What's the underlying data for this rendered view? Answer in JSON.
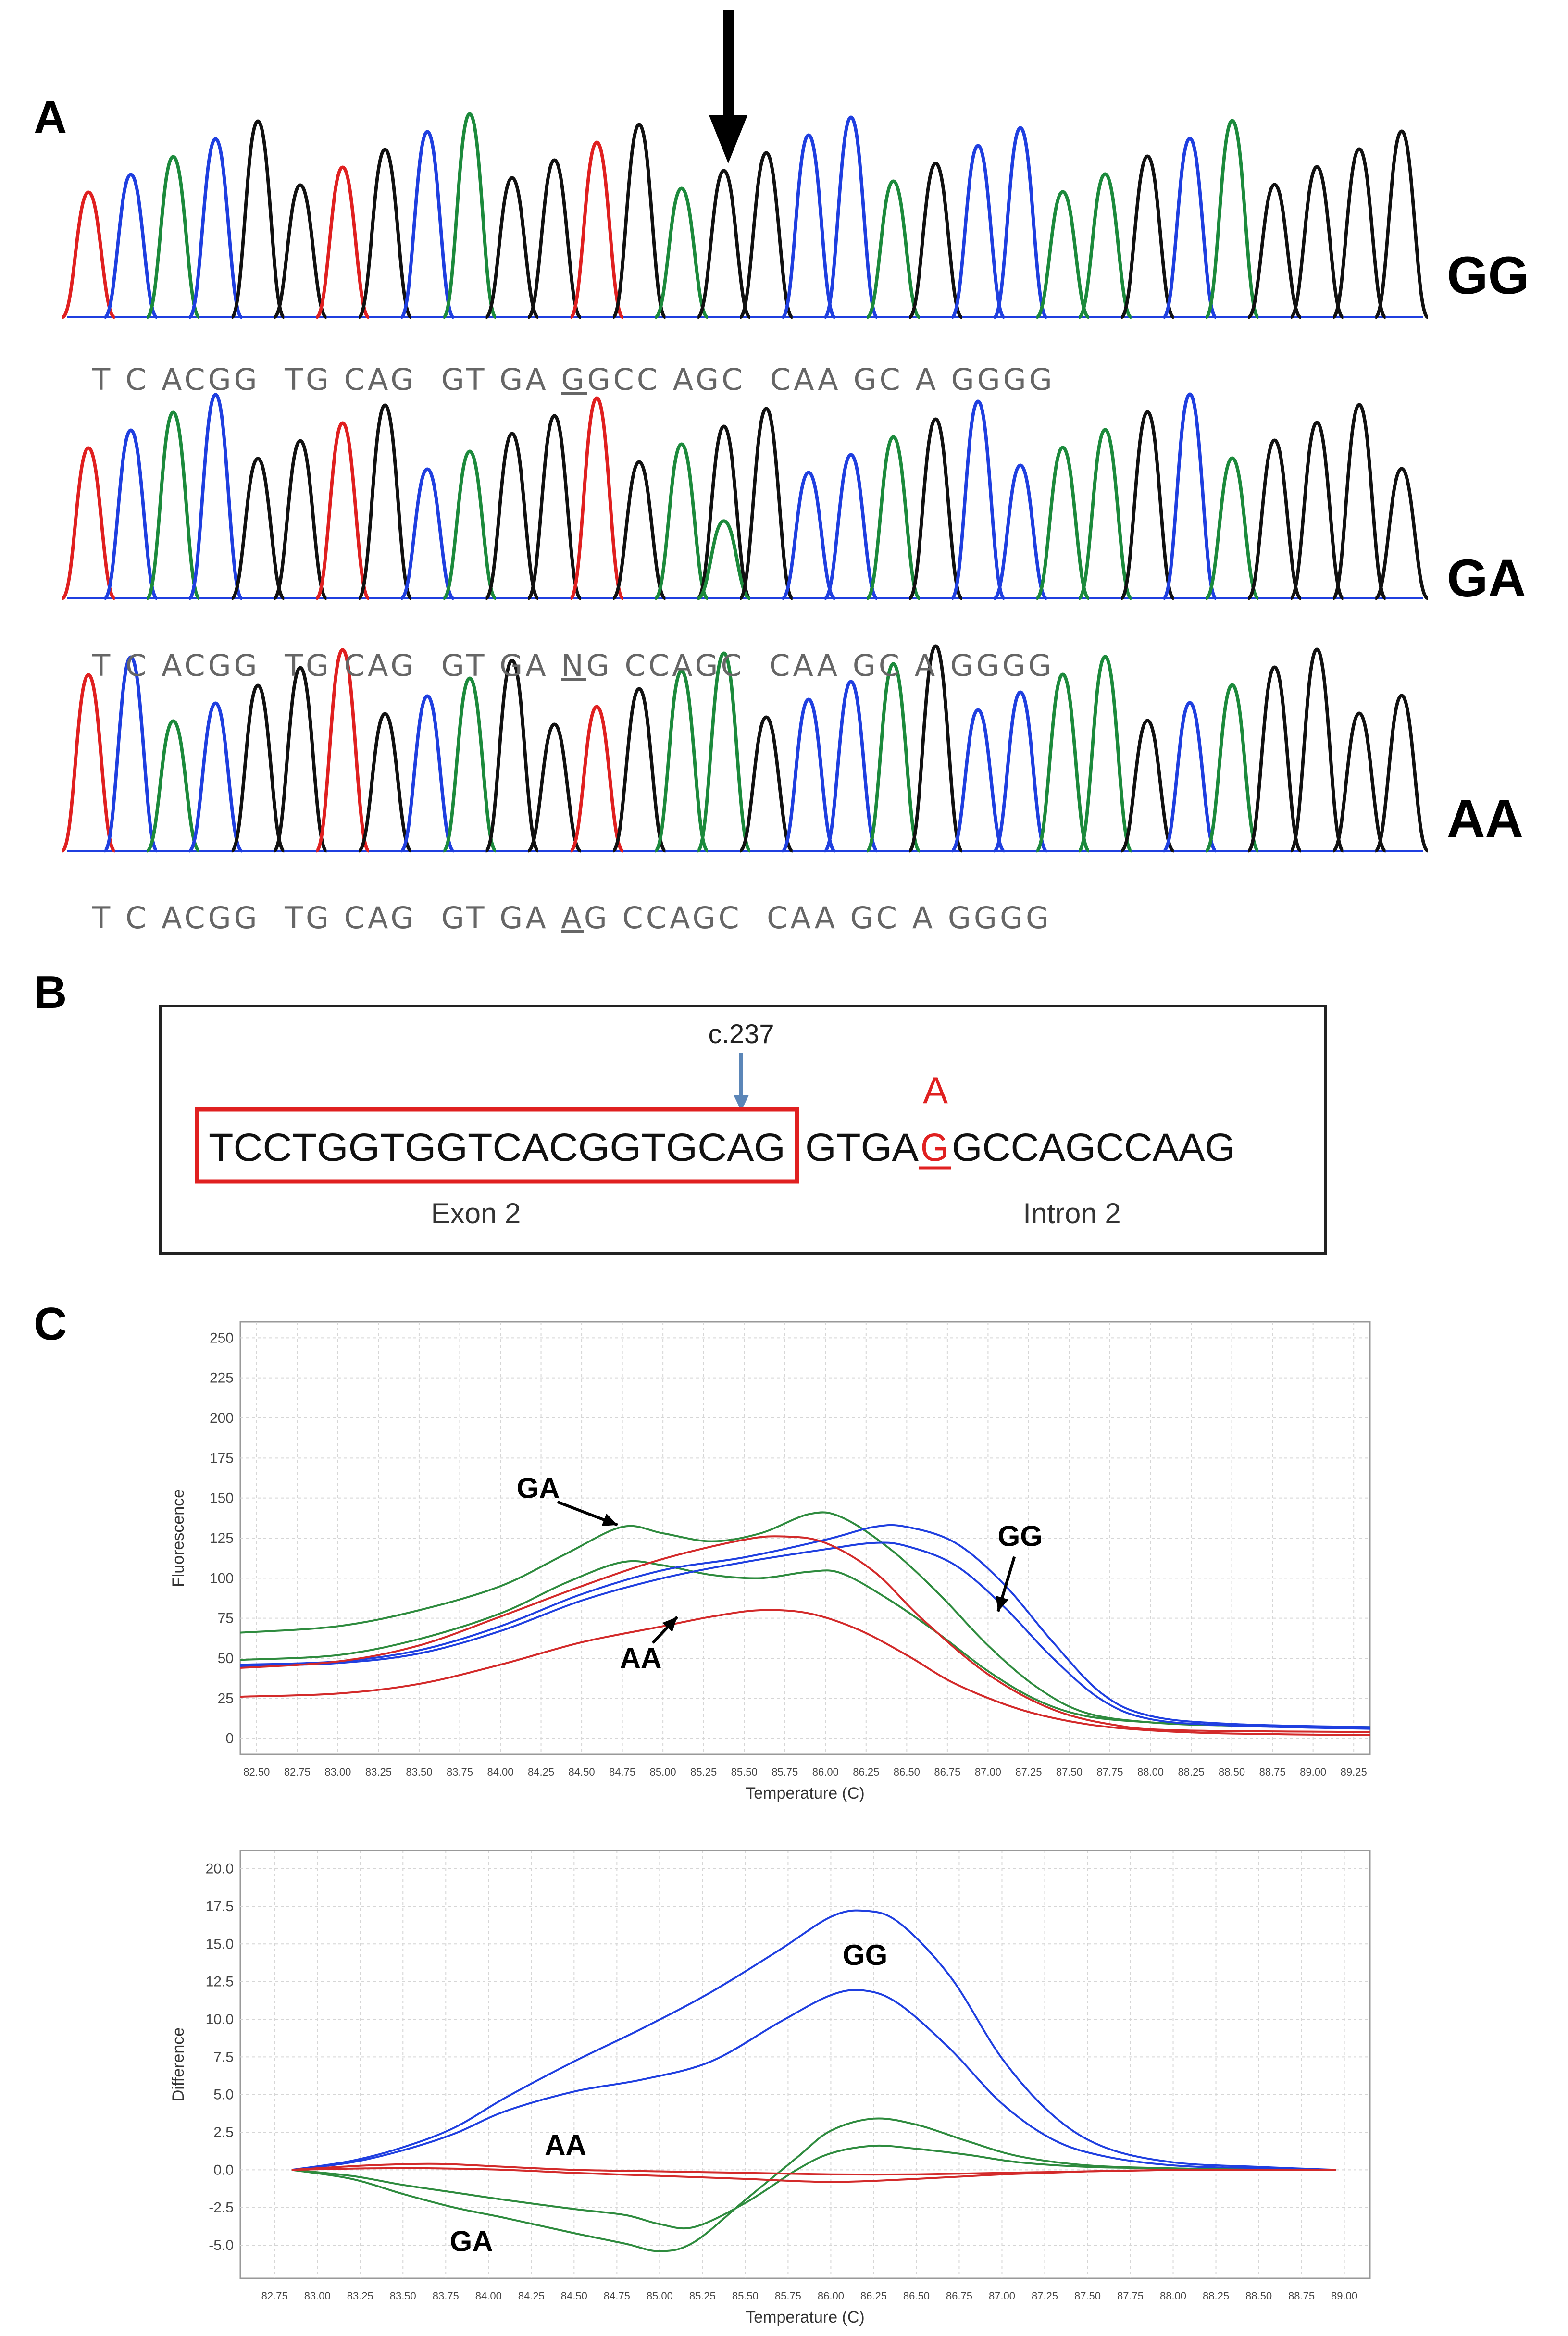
{
  "panels": {
    "A": {
      "letter": "A",
      "rows": [
        {
          "genotype": "GG",
          "seq_before": "T C ACGG  TG CAG  GT GA ",
          "variant_base": "G",
          "seq_after": "GCC AGC  CAA GC A GGGG"
        },
        {
          "genotype": "GA",
          "seq_before": "T C ACGG  TG CAG  GT GA ",
          "variant_base": "N",
          "seq_after": "G CCAGC  CAA GC A GGGG"
        },
        {
          "genotype": "AA",
          "seq_before": "T C ACGG  TG CAG  GT GA ",
          "variant_base": "A",
          "seq_after": "G CCAGC  CAA GC A GGGG"
        }
      ],
      "base_colors": {
        "A": "#1c8a3c",
        "C": "#1f3fe0",
        "G": "#111111",
        "T": "#e02020"
      }
    },
    "B": {
      "letter": "B",
      "position_label": "c.237",
      "exon_seq": "TCCTGGTGGTCACGGTGCAG",
      "intron_seq_before": "GTGA",
      "variant_ref": "G",
      "intron_seq_after": "GCCAGCCAAG",
      "variant_alt": "A",
      "exon_label": "Exon 2",
      "intron_label": "Intron 2",
      "highlight_color": "#e02020",
      "arrow_color": "#5b86b8"
    },
    "C": {
      "letter": "C"
    }
  },
  "chart_data": [
    {
      "type": "line",
      "title": "",
      "xlabel": "Temperature (C)",
      "ylabel": "Fluorescence",
      "xlim": [
        82.4,
        89.35
      ],
      "ylim": [
        -10,
        260
      ],
      "x_ticks": [
        "82.50",
        "82.75",
        "83.00",
        "83.25",
        "83.50",
        "83.75",
        "84.00",
        "84.25",
        "84.50",
        "84.75",
        "85.00",
        "85.25",
        "85.50",
        "85.75",
        "86.00",
        "86.25",
        "86.50",
        "86.75",
        "87.00",
        "87.25",
        "87.50",
        "87.75",
        "88.00",
        "88.25",
        "88.50",
        "88.75",
        "89.00",
        "89.25"
      ],
      "y_ticks": [
        "0",
        "25",
        "50",
        "75",
        "100",
        "125",
        "150",
        "175",
        "200",
        "225",
        "250"
      ],
      "series": [
        {
          "name": "GA-1",
          "color": "#2e8b3e",
          "x": [
            82.4,
            83.0,
            83.5,
            84.0,
            84.4,
            84.75,
            85.0,
            85.3,
            85.6,
            85.9,
            86.1,
            86.4,
            86.7,
            87.0,
            87.3,
            87.6,
            88.0,
            88.5,
            89.35
          ],
          "y": [
            66,
            70,
            80,
            95,
            115,
            132,
            128,
            123,
            128,
            140,
            138,
            118,
            90,
            58,
            32,
            16,
            10,
            8,
            7
          ]
        },
        {
          "name": "GA-2",
          "color": "#2e8b3e",
          "x": [
            82.4,
            83.0,
            83.5,
            84.0,
            84.4,
            84.75,
            85.0,
            85.3,
            85.6,
            85.9,
            86.1,
            86.4,
            86.7,
            87.0,
            87.3,
            87.6,
            88.0,
            88.5,
            89.35
          ],
          "y": [
            49,
            52,
            62,
            78,
            97,
            110,
            108,
            102,
            100,
            104,
            103,
            86,
            65,
            42,
            24,
            14,
            10,
            8,
            7
          ]
        },
        {
          "name": "GG-1",
          "color": "#1f3fe0",
          "x": [
            82.4,
            83.0,
            83.5,
            84.0,
            84.5,
            85.0,
            85.5,
            86.0,
            86.3,
            86.5,
            86.8,
            87.1,
            87.4,
            87.7,
            88.0,
            88.5,
            89.35
          ],
          "y": [
            46,
            48,
            55,
            70,
            90,
            105,
            113,
            124,
            132,
            132,
            122,
            96,
            60,
            28,
            14,
            9,
            7
          ]
        },
        {
          "name": "GG-2",
          "color": "#1f3fe0",
          "x": [
            82.4,
            83.0,
            83.5,
            84.0,
            84.5,
            85.0,
            85.5,
            86.0,
            86.3,
            86.5,
            86.8,
            87.1,
            87.4,
            87.7,
            88.0,
            88.5,
            89.35
          ],
          "y": [
            45,
            47,
            53,
            67,
            86,
            100,
            110,
            118,
            122,
            120,
            108,
            82,
            50,
            24,
            12,
            8,
            6
          ]
        },
        {
          "name": "AA-1",
          "color": "#d32a2a",
          "x": [
            82.4,
            83.0,
            83.5,
            84.0,
            84.5,
            85.0,
            85.5,
            85.75,
            86.0,
            86.3,
            86.6,
            87.0,
            87.4,
            87.8,
            88.2,
            89.35
          ],
          "y": [
            44,
            48,
            58,
            76,
            95,
            112,
            124,
            126,
            122,
            104,
            74,
            40,
            18,
            8,
            5,
            4
          ]
        },
        {
          "name": "AA-2",
          "color": "#d32a2a",
          "x": [
            82.4,
            83.0,
            83.5,
            84.0,
            84.5,
            85.0,
            85.3,
            85.6,
            85.9,
            86.2,
            86.5,
            86.8,
            87.2,
            87.6,
            88.0,
            88.5,
            89.35
          ],
          "y": [
            26,
            28,
            34,
            46,
            60,
            70,
            76,
            80,
            78,
            68,
            52,
            34,
            18,
            9,
            5,
            3,
            2
          ]
        }
      ],
      "annotations": [
        {
          "text": "GA",
          "points_to": [
            84.75,
            132
          ]
        },
        {
          "text": "GG",
          "points_to": [
            87.05,
            78
          ]
        },
        {
          "text": "AA",
          "points_to": [
            85.1,
            77
          ]
        }
      ]
    },
    {
      "type": "line",
      "title": "",
      "xlabel": "Temperature (C)",
      "ylabel": "Difference",
      "xlim": [
        82.55,
        89.15
      ],
      "ylim": [
        -7.2,
        21.2
      ],
      "x_ticks": [
        "82.75",
        "83.00",
        "83.25",
        "83.50",
        "83.75",
        "84.00",
        "84.25",
        "84.50",
        "84.75",
        "85.00",
        "85.25",
        "85.50",
        "85.75",
        "86.00",
        "86.25",
        "86.50",
        "86.75",
        "87.00",
        "87.25",
        "87.50",
        "87.75",
        "88.00",
        "88.25",
        "88.50",
        "88.75",
        "89.00"
      ],
      "y_ticks": [
        "-5.0",
        "-2.5",
        "0.0",
        "2.5",
        "5.0",
        "7.5",
        "10.0",
        "12.5",
        "15.0",
        "17.5",
        "20.0"
      ],
      "series": [
        {
          "name": "GG-1",
          "color": "#1f3fe0",
          "x": [
            82.85,
            83.2,
            83.5,
            83.8,
            84.1,
            84.5,
            84.9,
            85.3,
            85.7,
            86.0,
            86.2,
            86.4,
            86.7,
            87.0,
            87.3,
            87.6,
            88.0,
            88.5,
            88.95
          ],
          "y": [
            0,
            0.6,
            1.5,
            2.8,
            4.8,
            7.2,
            9.4,
            11.8,
            14.6,
            16.8,
            17.2,
            16.4,
            12.8,
            7.4,
            3.6,
            1.5,
            0.5,
            0.2,
            0
          ]
        },
        {
          "name": "GG-2",
          "color": "#1f3fe0",
          "x": [
            82.85,
            83.2,
            83.5,
            83.8,
            84.1,
            84.5,
            84.9,
            85.3,
            85.7,
            86.0,
            86.2,
            86.4,
            86.7,
            87.0,
            87.3,
            87.6,
            88.0,
            88.5,
            88.95
          ],
          "y": [
            0,
            0.5,
            1.3,
            2.4,
            3.9,
            5.2,
            6.0,
            7.2,
            9.8,
            11.6,
            11.9,
            11.0,
            8.0,
            4.4,
            2.0,
            0.9,
            0.3,
            0.1,
            0
          ]
        },
        {
          "name": "GA-1",
          "color": "#2e8b3e",
          "x": [
            82.85,
            83.2,
            83.5,
            83.8,
            84.1,
            84.5,
            84.8,
            85.0,
            85.2,
            85.5,
            85.8,
            86.0,
            86.25,
            86.5,
            86.8,
            87.1,
            87.5,
            88.0,
            88.5,
            88.95
          ],
          "y": [
            0,
            -0.6,
            -1.6,
            -2.5,
            -3.2,
            -4.2,
            -4.9,
            -5.4,
            -4.8,
            -2.0,
            0.8,
            2.6,
            3.4,
            3.0,
            1.9,
            0.9,
            0.3,
            0.1,
            0,
            0
          ]
        },
        {
          "name": "GA-2",
          "color": "#2e8b3e",
          "x": [
            82.85,
            83.2,
            83.5,
            83.8,
            84.1,
            84.5,
            84.8,
            85.0,
            85.2,
            85.5,
            85.8,
            86.0,
            86.25,
            86.5,
            86.8,
            87.1,
            87.5,
            88.0,
            88.5,
            88.95
          ],
          "y": [
            0,
            -0.4,
            -1.0,
            -1.5,
            -2.0,
            -2.6,
            -3.0,
            -3.6,
            -3.8,
            -2.2,
            0.0,
            1.1,
            1.6,
            1.4,
            1.0,
            0.5,
            0.2,
            0.1,
            0,
            0
          ]
        },
        {
          "name": "AA-1",
          "color": "#d32a2a",
          "x": [
            82.85,
            83.3,
            83.7,
            84.1,
            84.5,
            85.0,
            85.5,
            86.0,
            86.5,
            87.0,
            87.5,
            88.0,
            88.5,
            88.95
          ],
          "y": [
            0,
            0.3,
            0.4,
            0.2,
            0,
            -0.1,
            -0.2,
            -0.3,
            -0.3,
            -0.2,
            -0.1,
            0,
            0,
            0
          ]
        },
        {
          "name": "AA-2",
          "color": "#d32a2a",
          "x": [
            82.85,
            83.3,
            83.7,
            84.1,
            84.5,
            85.0,
            85.5,
            86.0,
            86.5,
            87.0,
            87.5,
            88.0,
            88.5,
            88.95
          ],
          "y": [
            0,
            0.1,
            0.1,
            0,
            -0.2,
            -0.4,
            -0.6,
            -0.8,
            -0.6,
            -0.3,
            -0.1,
            0,
            0,
            0
          ]
        }
      ],
      "annotations": [
        {
          "text": "GG",
          "at": [
            86.2,
            13.6
          ]
        },
        {
          "text": "AA",
          "at": [
            84.45,
            1.0
          ]
        },
        {
          "text": "GA",
          "at": [
            83.9,
            -5.4
          ]
        }
      ]
    }
  ]
}
